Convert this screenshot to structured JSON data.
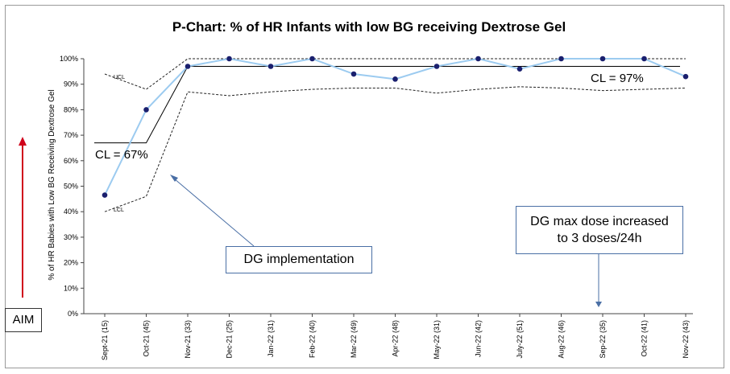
{
  "chart_data": {
    "type": "line",
    "title": "P-Chart: % of HR Infants with low BG receiving Dextrose Gel",
    "ylabel": "% of HR Babies with Low BG Receiving Dextrose Gel",
    "xlabel": "",
    "ylim": [
      0,
      100
    ],
    "yticks": [
      "0%",
      "10%",
      "20%",
      "30%",
      "40%",
      "50%",
      "60%",
      "70%",
      "80%",
      "90%",
      "100%"
    ],
    "categories": [
      "Sept-21 (15)",
      "Oct-21 (45)",
      "Nov-21 (33)",
      "Dec-21 (25)",
      "Jan-22 (31)",
      "Feb-22 (40)",
      "Mar-22 (49)",
      "Apr-22 (48)",
      "May-22 (31)",
      "Jun-22 (42)",
      "July-22 (51)",
      "Aug-22 (46)",
      "Sep-22 (35)",
      "Oct-22 (41)",
      "Nov-22 (43)"
    ],
    "series": [
      {
        "values": [
          46.5,
          80,
          97,
          100,
          97,
          100,
          94,
          92,
          97,
          100,
          96,
          100,
          100,
          100,
          93
        ],
        "color": "#9ccbf0",
        "marker_color": "#1a1f6e"
      }
    ],
    "center_line": [
      67,
      67,
      97,
      97,
      97,
      97,
      97,
      97,
      97,
      97,
      97,
      97,
      97,
      97,
      97
    ],
    "ucl": [
      94,
      88,
      100,
      100,
      100,
      100,
      100,
      100,
      100,
      100,
      100,
      100,
      100,
      100,
      100
    ],
    "lcl": [
      40,
      46,
      87,
      85.5,
      87,
      88,
      88.5,
      88.5,
      86.5,
      88,
      89,
      88.5,
      87.5,
      88,
      88.5
    ],
    "labels": {
      "ucl": "UCL",
      "lcl": "LCL",
      "cl_before": "CL = 67%",
      "cl_after": "CL = 97%",
      "aim": "AIM"
    },
    "annotations": {
      "implementation": "DG implementation",
      "dose_line1": "DG max dose increased",
      "dose_line2": "to 3 doses/24h"
    },
    "grid": false,
    "legend": "none"
  }
}
